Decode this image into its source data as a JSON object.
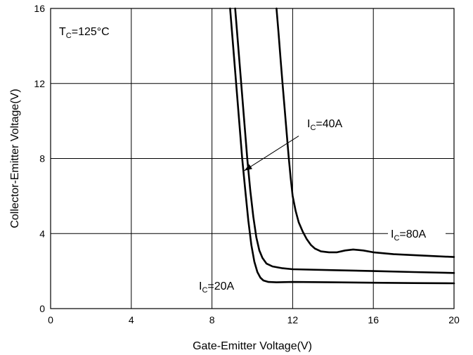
{
  "chart_data": {
    "type": "line",
    "title": "",
    "xlabel": "Gate-Emitter Voltage(V)",
    "ylabel": "Collector-Emitter Voltage(V)",
    "xlim": [
      0,
      20
    ],
    "ylim": [
      0,
      16
    ],
    "xticks": [
      0,
      4,
      8,
      12,
      16,
      20
    ],
    "yticks": [
      0,
      4,
      8,
      12,
      16
    ],
    "grid": true,
    "condition": {
      "main": "T",
      "sub": "C",
      "value": "=125°C"
    },
    "series": [
      {
        "name": "IC=20A",
        "label_main": "I",
        "label_sub": "C",
        "label_value": "=20A",
        "x": [
          8.9,
          9.05,
          9.2,
          9.35,
          9.5,
          9.65,
          9.8,
          9.95,
          10.1,
          10.25,
          10.4,
          10.55,
          10.8,
          11.2,
          12,
          14,
          16,
          18,
          20
        ],
        "y": [
          16,
          14.0,
          12.0,
          10.0,
          8.0,
          6.3,
          4.7,
          3.4,
          2.5,
          1.95,
          1.65,
          1.5,
          1.42,
          1.4,
          1.42,
          1.4,
          1.38,
          1.36,
          1.35
        ]
      },
      {
        "name": "IC=40A",
        "label_main": "I",
        "label_sub": "C",
        "label_value": "=40A",
        "x": [
          9.15,
          9.3,
          9.45,
          9.6,
          9.75,
          9.9,
          10.05,
          10.2,
          10.35,
          10.5,
          10.7,
          11.0,
          11.5,
          12,
          14,
          16,
          18,
          20
        ],
        "y": [
          16,
          14.0,
          12.0,
          10.0,
          8.0,
          6.3,
          4.9,
          3.8,
          3.1,
          2.7,
          2.4,
          2.25,
          2.15,
          2.1,
          2.05,
          2.0,
          1.95,
          1.9
        ]
      },
      {
        "name": "IC=80A",
        "label_main": "I",
        "label_sub": "C",
        "label_value": "=80A",
        "x": [
          11.2,
          11.3,
          11.4,
          11.5,
          11.6,
          11.7,
          11.8,
          11.9,
          12.0,
          12.15,
          12.3,
          12.5,
          12.7,
          12.9,
          13.1,
          13.4,
          13.8,
          14.2,
          14.6,
          15.0,
          15.5,
          16,
          17,
          18,
          19,
          20
        ],
        "y": [
          16,
          14.7,
          13.3,
          12.0,
          10.7,
          9.4,
          8.1,
          7.0,
          6.0,
          5.2,
          4.6,
          4.1,
          3.7,
          3.4,
          3.2,
          3.05,
          3.0,
          3.0,
          3.1,
          3.15,
          3.1,
          3.0,
          2.9,
          2.85,
          2.8,
          2.75
        ]
      }
    ],
    "arrow": {
      "from": [
        12.3,
        9.2
      ],
      "to": [
        9.6,
        7.35
      ]
    }
  }
}
